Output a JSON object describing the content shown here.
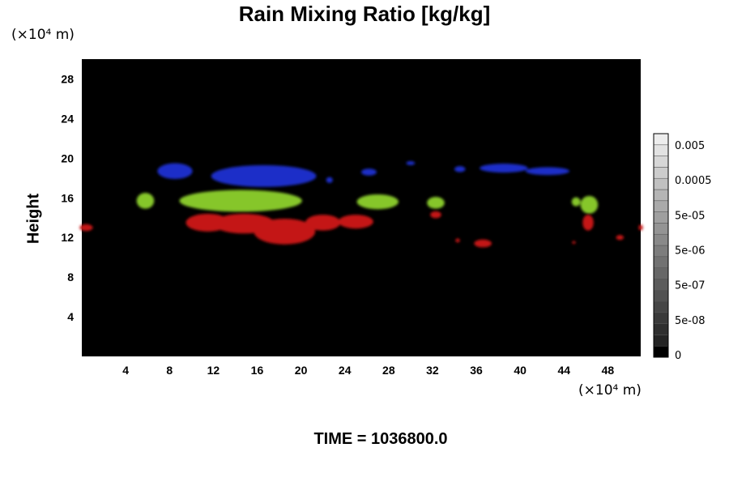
{
  "chart_data": {
    "type": "heatmap",
    "title": "Rain Mixing Ratio [kg/kg]",
    "xlabel": "",
    "ylabel": "Height",
    "x_unit": "(×10⁴ m)",
    "y_unit": "(×10⁴ m)",
    "xlim": [
      0,
      51
    ],
    "ylim": [
      0,
      30
    ],
    "x_ticks": [
      4,
      8,
      12,
      16,
      20,
      24,
      28,
      32,
      36,
      40,
      44,
      48
    ],
    "y_ticks": [
      4,
      8,
      12,
      16,
      20,
      24,
      28
    ],
    "background_color": "#000000",
    "colorbar": {
      "labels": [
        "0.005",
        "0.0005",
        "5e-05",
        "5e-06",
        "5e-07",
        "5e-08",
        "0"
      ],
      "levels": 20,
      "colors": [
        "#000000",
        "#ffffff"
      ]
    },
    "regions": [
      {
        "color": "#1c2fc8",
        "blobs": [
          [
            8.5,
            18.7,
            1.6,
            0.8
          ],
          [
            16.6,
            18.2,
            4.8,
            1.1
          ],
          [
            22.6,
            17.8,
            0.3,
            0.3
          ],
          [
            26.2,
            18.6,
            0.7,
            0.35
          ],
          [
            30.0,
            19.5,
            0.4,
            0.2
          ],
          [
            34.5,
            18.9,
            0.5,
            0.3
          ],
          [
            38.5,
            19.0,
            2.2,
            0.45
          ],
          [
            42.5,
            18.7,
            2.0,
            0.4
          ]
        ]
      },
      {
        "color": "#86c62a",
        "blobs": [
          [
            5.8,
            15.7,
            0.8,
            0.8
          ],
          [
            14.5,
            15.7,
            5.6,
            1.1
          ],
          [
            27.0,
            15.6,
            1.9,
            0.75
          ],
          [
            32.3,
            15.5,
            0.8,
            0.6
          ],
          [
            46.3,
            15.3,
            0.8,
            0.9
          ],
          [
            45.1,
            15.6,
            0.4,
            0.45
          ]
        ]
      },
      {
        "color": "#c41515",
        "blobs": [
          [
            0.4,
            13.0,
            0.6,
            0.35
          ],
          [
            11.5,
            13.5,
            2.0,
            0.9
          ],
          [
            14.8,
            13.4,
            2.8,
            1.0
          ],
          [
            18.5,
            12.6,
            2.8,
            1.3
          ],
          [
            22.0,
            13.5,
            1.6,
            0.8
          ],
          [
            25.0,
            13.6,
            1.6,
            0.7
          ],
          [
            32.3,
            14.3,
            0.5,
            0.35
          ],
          [
            36.6,
            11.4,
            0.8,
            0.4
          ],
          [
            34.3,
            11.7,
            0.2,
            0.2
          ],
          [
            46.2,
            13.5,
            0.5,
            0.8
          ],
          [
            49.1,
            12.0,
            0.35,
            0.25
          ],
          [
            44.9,
            11.5,
            0.15,
            0.15
          ],
          [
            51.0,
            13.0,
            0.2,
            0.3
          ]
        ]
      }
    ]
  },
  "footer": {
    "time_label": "TIME = 1036800.0"
  }
}
